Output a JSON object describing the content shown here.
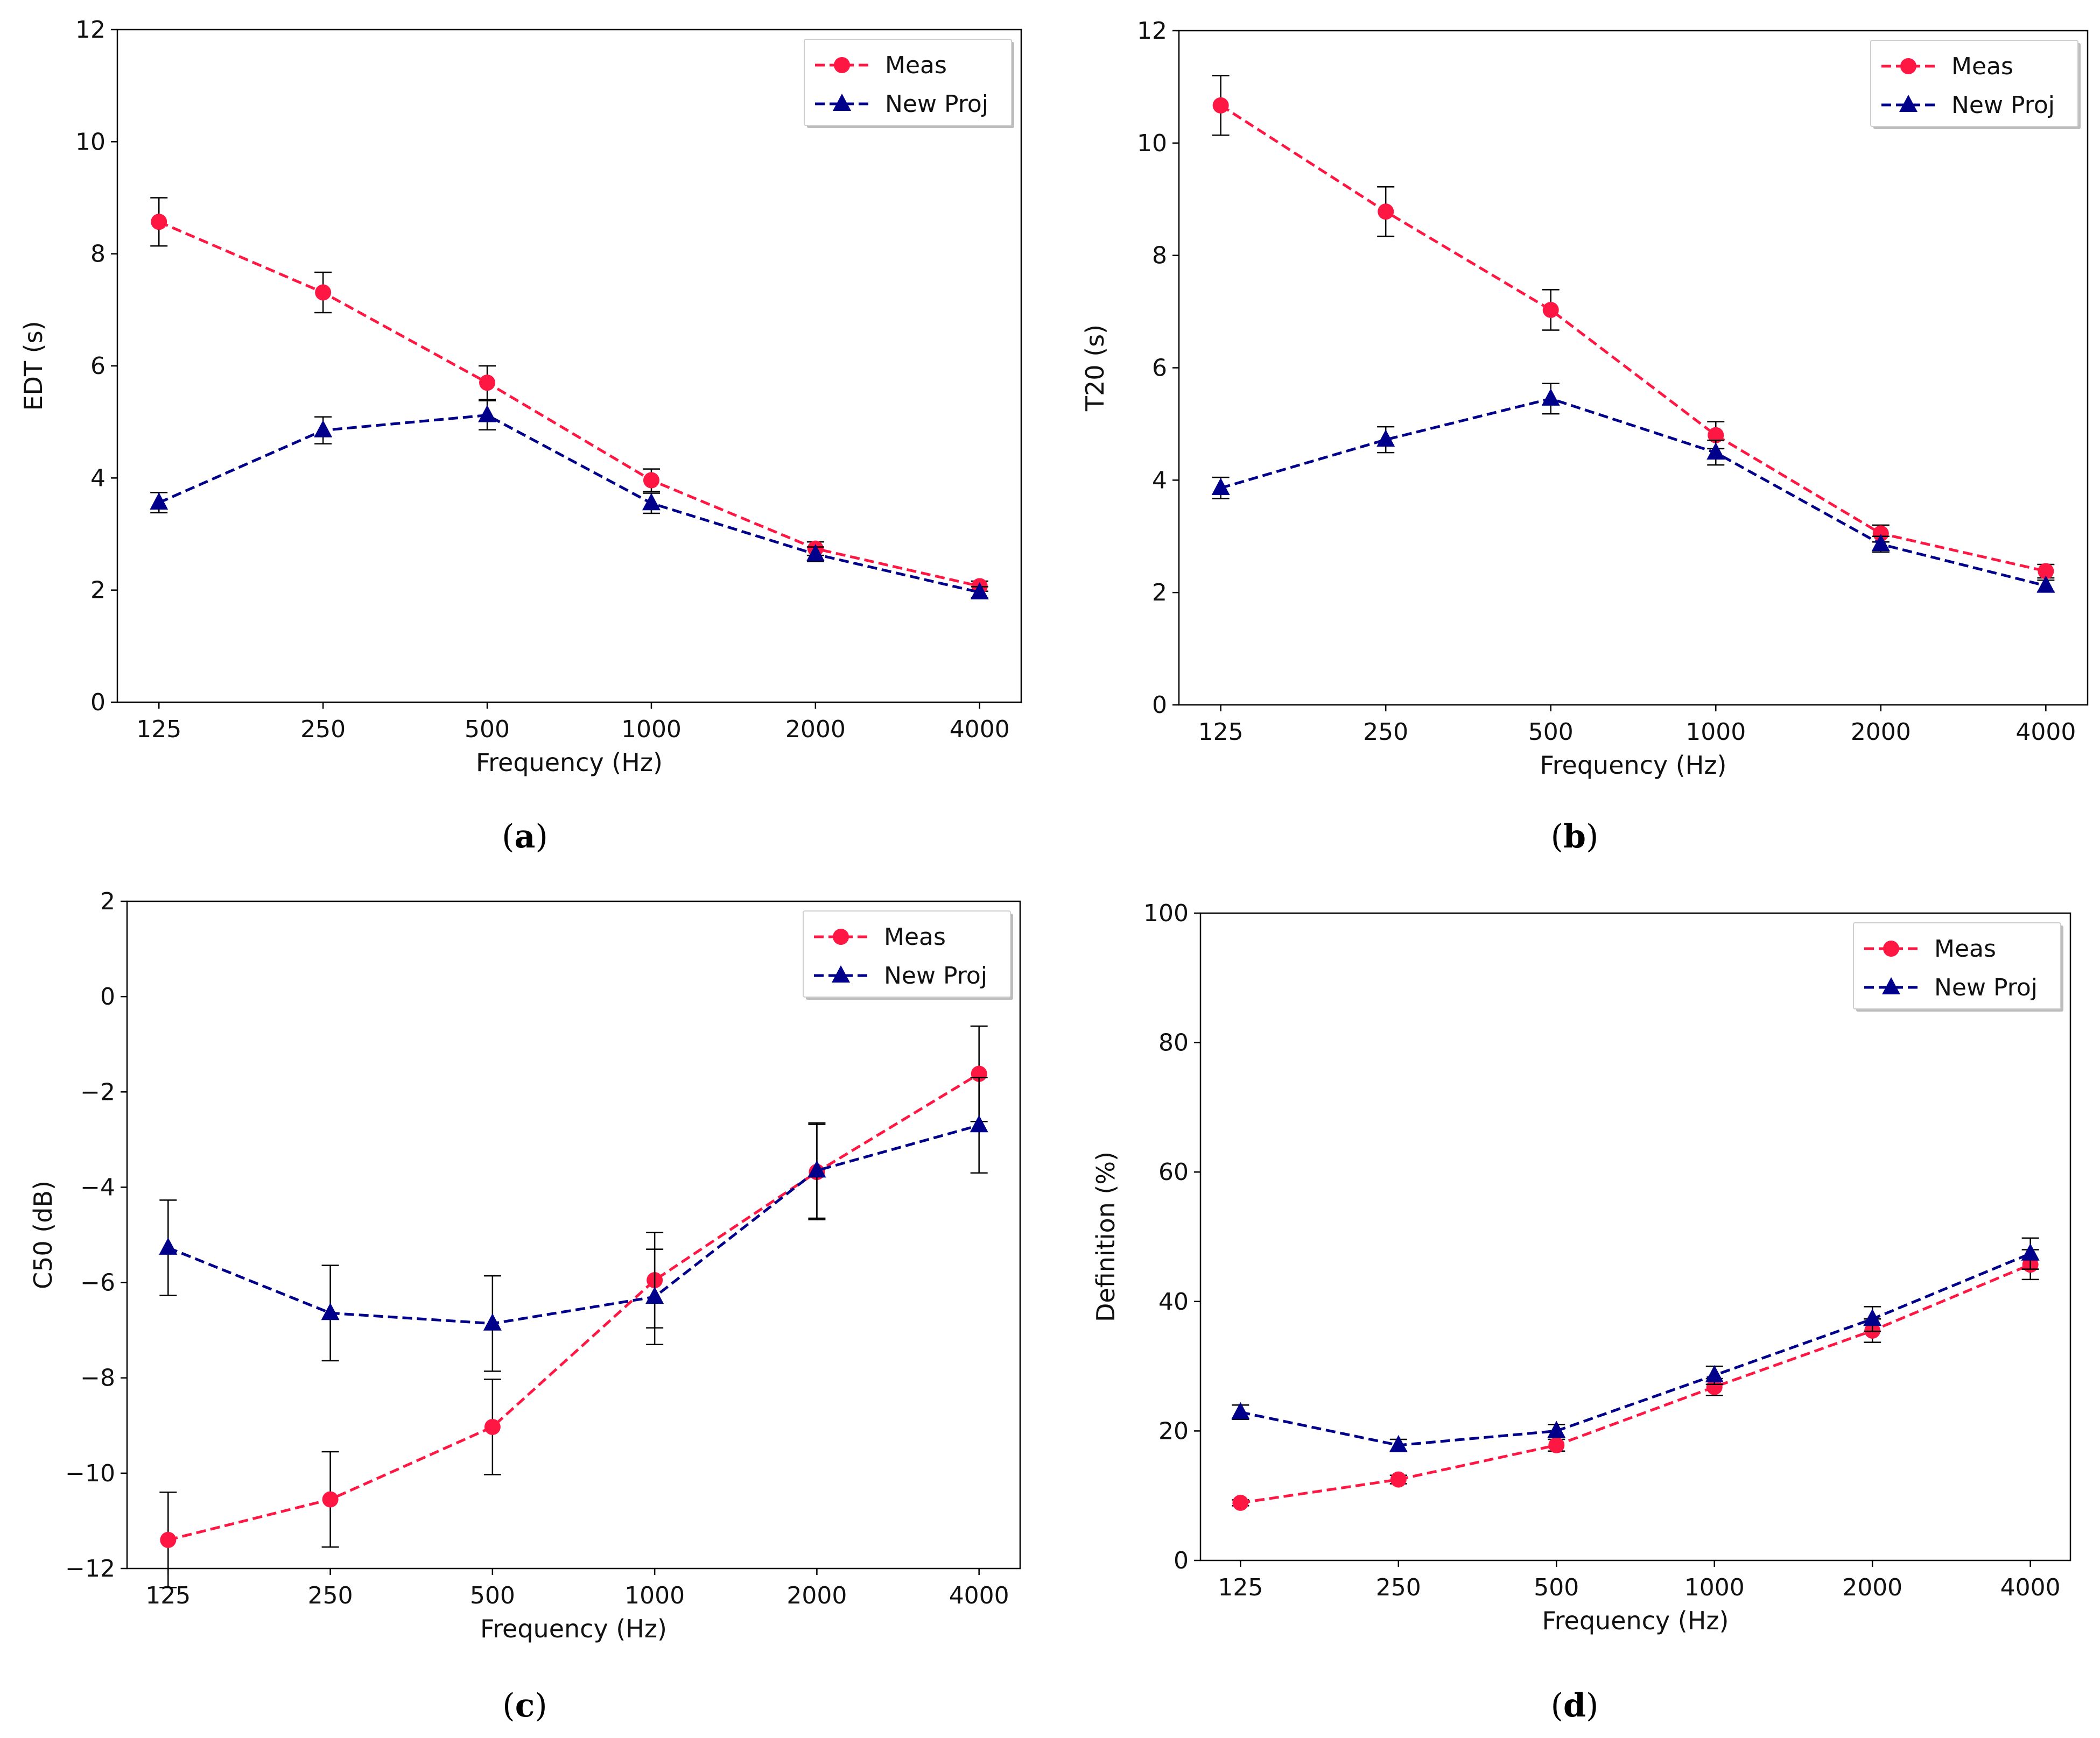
{
  "chart_data": [
    {
      "type": "line",
      "panel_label": "a",
      "xlabel": "Frequency (Hz)",
      "ylabel": "EDT (s)",
      "categories": [
        "125",
        "250",
        "500",
        "1000",
        "2000",
        "4000"
      ],
      "ylim": [
        0,
        12
      ],
      "yticks": [
        0,
        2,
        4,
        6,
        8,
        10,
        12
      ],
      "ytick_labels": [
        "0",
        "2",
        "4",
        "6",
        "8",
        "10",
        "12"
      ],
      "legend_position": "top-right",
      "series": [
        {
          "name": "Meas",
          "marker": "circle",
          "color": "#ff1744",
          "values": [
            8.57,
            7.31,
            5.7,
            3.96,
            2.74,
            2.07
          ],
          "errors": [
            0.43,
            0.36,
            0.3,
            0.2,
            0.12,
            0.09
          ]
        },
        {
          "name": "New Proj",
          "marker": "triangle",
          "color": "#00008b",
          "values": [
            3.56,
            4.85,
            5.12,
            3.55,
            2.64,
            1.96
          ],
          "errors": [
            0.18,
            0.24,
            0.26,
            0.18,
            0.13,
            0.1
          ]
        }
      ]
    },
    {
      "type": "line",
      "panel_label": "b",
      "xlabel": "Frequency (Hz)",
      "ylabel": "T20 (s)",
      "categories": [
        "125",
        "250",
        "500",
        "1000",
        "2000",
        "4000"
      ],
      "ylim": [
        0,
        12
      ],
      "yticks": [
        0,
        2,
        4,
        6,
        8,
        10,
        12
      ],
      "ytick_labels": [
        "0",
        "2",
        "4",
        "6",
        "8",
        "10",
        "12"
      ],
      "legend_position": "top-right",
      "series": [
        {
          "name": "Meas",
          "marker": "circle",
          "color": "#ff1744",
          "values": [
            10.67,
            8.78,
            7.03,
            4.8,
            3.05,
            2.38
          ],
          "errors": [
            0.53,
            0.44,
            0.36,
            0.24,
            0.15,
            0.12
          ]
        },
        {
          "name": "New Proj",
          "marker": "triangle",
          "color": "#00008b",
          "values": [
            3.86,
            4.72,
            5.45,
            4.49,
            2.86,
            2.12
          ],
          "errors": [
            0.19,
            0.23,
            0.27,
            0.22,
            0.14,
            0.1
          ]
        }
      ]
    },
    {
      "type": "line",
      "panel_label": "c",
      "xlabel": "Frequency (Hz)",
      "ylabel": "C50 (dB)",
      "categories": [
        "125",
        "250",
        "500",
        "1000",
        "2000",
        "4000"
      ],
      "ylim": [
        -12,
        2
      ],
      "yticks": [
        -12,
        -10,
        -8,
        -6,
        -4,
        -2,
        0,
        2
      ],
      "ytick_labels": [
        "−12",
        "−10",
        "−8",
        "−6",
        "−4",
        "−2",
        "0",
        "2"
      ],
      "legend_position": "top-right",
      "series": [
        {
          "name": "Meas",
          "marker": "circle",
          "color": "#ff1744",
          "values": [
            -11.4,
            -10.55,
            -9.03,
            -5.95,
            -3.68,
            -1.62
          ],
          "errors": [
            1.0,
            1.0,
            1.0,
            1.0,
            1.0,
            1.0
          ]
        },
        {
          "name": "New Proj",
          "marker": "triangle",
          "color": "#00008b",
          "values": [
            -5.27,
            -6.64,
            -6.86,
            -6.3,
            -3.65,
            -2.7
          ],
          "errors": [
            1.0,
            1.0,
            1.0,
            1.0,
            1.0,
            1.0
          ]
        }
      ]
    },
    {
      "type": "line",
      "panel_label": "d",
      "xlabel": "Frequency (Hz)",
      "ylabel": "Definition (%)",
      "categories": [
        "125",
        "250",
        "500",
        "1000",
        "2000",
        "4000"
      ],
      "ylim": [
        0,
        100
      ],
      "yticks": [
        0,
        20,
        40,
        60,
        80,
        100
      ],
      "ytick_labels": [
        "0",
        "20",
        "40",
        "60",
        "80",
        "100"
      ],
      "legend_position": "top-right",
      "series": [
        {
          "name": "Meas",
          "marker": "circle",
          "color": "#ff1744",
          "values": [
            8.9,
            12.5,
            17.8,
            26.8,
            35.5,
            45.7
          ],
          "errors": [
            0.45,
            0.65,
            0.9,
            1.3,
            1.8,
            2.3
          ]
        },
        {
          "name": "New Proj",
          "marker": "triangle",
          "color": "#00008b",
          "values": [
            22.9,
            17.8,
            20.0,
            28.6,
            37.3,
            47.4
          ],
          "errors": [
            1.1,
            0.9,
            1.0,
            1.4,
            1.9,
            2.4
          ]
        }
      ]
    }
  ]
}
